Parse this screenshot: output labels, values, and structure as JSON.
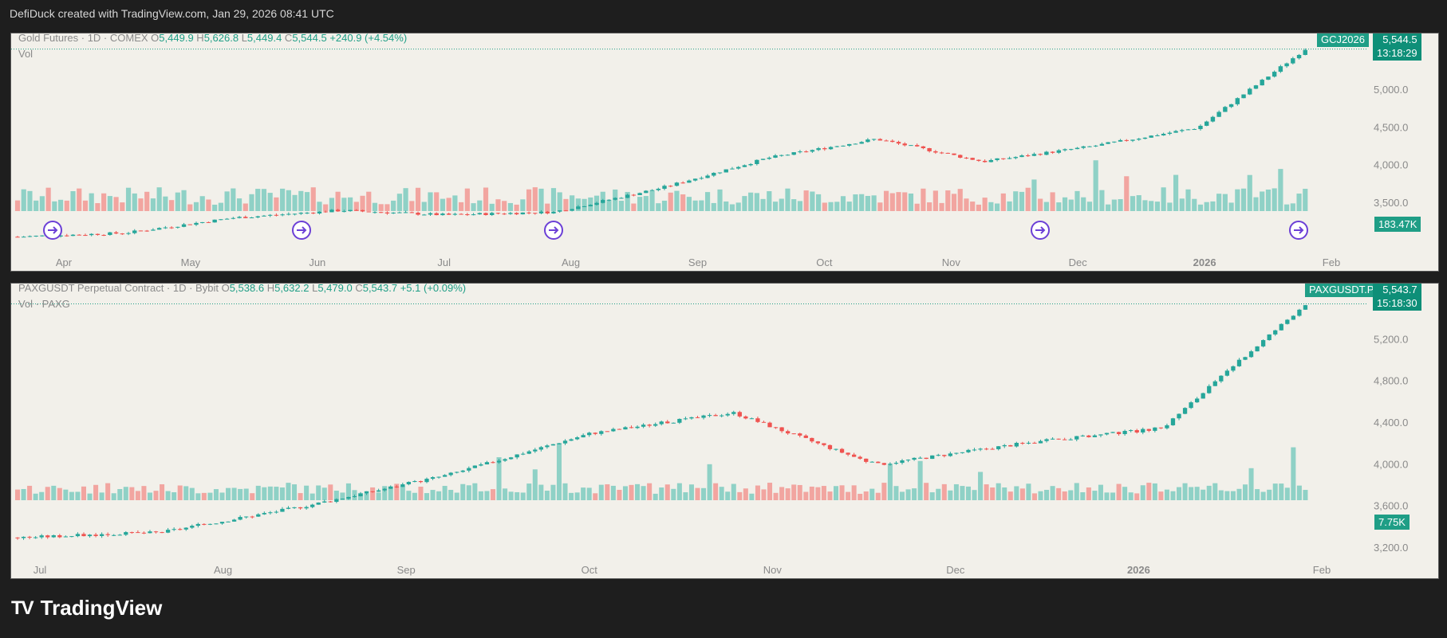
{
  "credit": "DefiDuck created with TradingView.com, Jan 29, 2026 08:41 UTC",
  "brand": {
    "name": "TradingView",
    "logo_text": "TV"
  },
  "colors": {
    "up": "#26a69a",
    "down": "#ef5350",
    "vol_up": "#8fd1c6",
    "vol_down": "#f2a5a0",
    "accent": "#1f9e86"
  },
  "panels": [
    {
      "title": "Gold Futures · 1D · COMEX",
      "o_label": "O",
      "o": "5,449.9",
      "h_label": "H",
      "h": "5,626.8",
      "l_label": "L",
      "l": "5,449.4",
      "c_label": "C",
      "c": "5,544.5",
      "change": "+240.9 (+4.54%)",
      "sub": "Vol",
      "ticker": "GCJ2026",
      "price_tag": "5,544.5",
      "countdown": "13:18:29",
      "vol_tag": "183.47K"
    },
    {
      "title": "PAXGUSDT Perpetual Contract · 1D · Bybit",
      "o_label": "O",
      "o": "5,538.6",
      "h_label": "H",
      "h": "5,632.2",
      "l_label": "L",
      "l": "5,479.0",
      "c_label": "C",
      "c": "5,543.7",
      "change": "+5.1 (+0.09%)",
      "sub": "Vol · PAXG",
      "ticker": "PAXGUSDT.P",
      "price_tag": "5,543.7",
      "countdown": "15:18:30",
      "vol_tag": "7.75K"
    }
  ],
  "chart_data": [
    {
      "type": "candlestick",
      "title": "Gold Futures · 1D · COMEX",
      "x_labels": [
        "Apr",
        "May",
        "Jun",
        "Jul",
        "Aug",
        "Sep",
        "Oct",
        "Nov",
        "Dec",
        "2026",
        "Feb"
      ],
      "y_ticks": [
        "5,000.0",
        "4,500.0",
        "4,000.0",
        "3,500.0"
      ],
      "ylim": [
        3000,
        5700
      ],
      "last_price": 5544.5,
      "volume_last": "183.47K",
      "rollover_markers": [
        "Apr",
        "Jun",
        "Aug",
        "Dec",
        "Feb"
      ],
      "series": [
        {
          "name": "close_approx",
          "dates": [
            "Mar",
            "Apr",
            "May",
            "Jun",
            "Jul",
            "Aug",
            "Sep",
            "Oct mid",
            "Oct 20",
            "Nov",
            "Dec",
            "2026",
            "Jan 29"
          ],
          "values": [
            3050,
            3100,
            3300,
            3400,
            3340,
            3380,
            3700,
            4100,
            4350,
            4050,
            4250,
            4500,
            5544.5
          ]
        }
      ]
    },
    {
      "type": "candlestick",
      "title": "PAXGUSDT Perpetual Contract · 1D · Bybit",
      "x_labels": [
        "Jul",
        "Aug",
        "Sep",
        "Oct",
        "Nov",
        "Dec",
        "2026",
        "Feb"
      ],
      "y_ticks": [
        "5,600.0",
        "5,200.0",
        "4,800.0",
        "4,400.0",
        "4,000.0",
        "3,600.0",
        "3,200.0"
      ],
      "ylim": [
        3100,
        5700
      ],
      "last_price": 5543.7,
      "volume_last": "7.75K",
      "series": [
        {
          "name": "close_approx",
          "dates": [
            "Jul",
            "Aug",
            "Sep",
            "Oct",
            "Oct 17",
            "Oct 20",
            "Nov",
            "Dec",
            "2026",
            "Jan 29"
          ],
          "values": [
            3300,
            3350,
            3600,
            3900,
            4300,
            4500,
            4000,
            4200,
            4350,
            5543.7
          ]
        }
      ]
    }
  ]
}
